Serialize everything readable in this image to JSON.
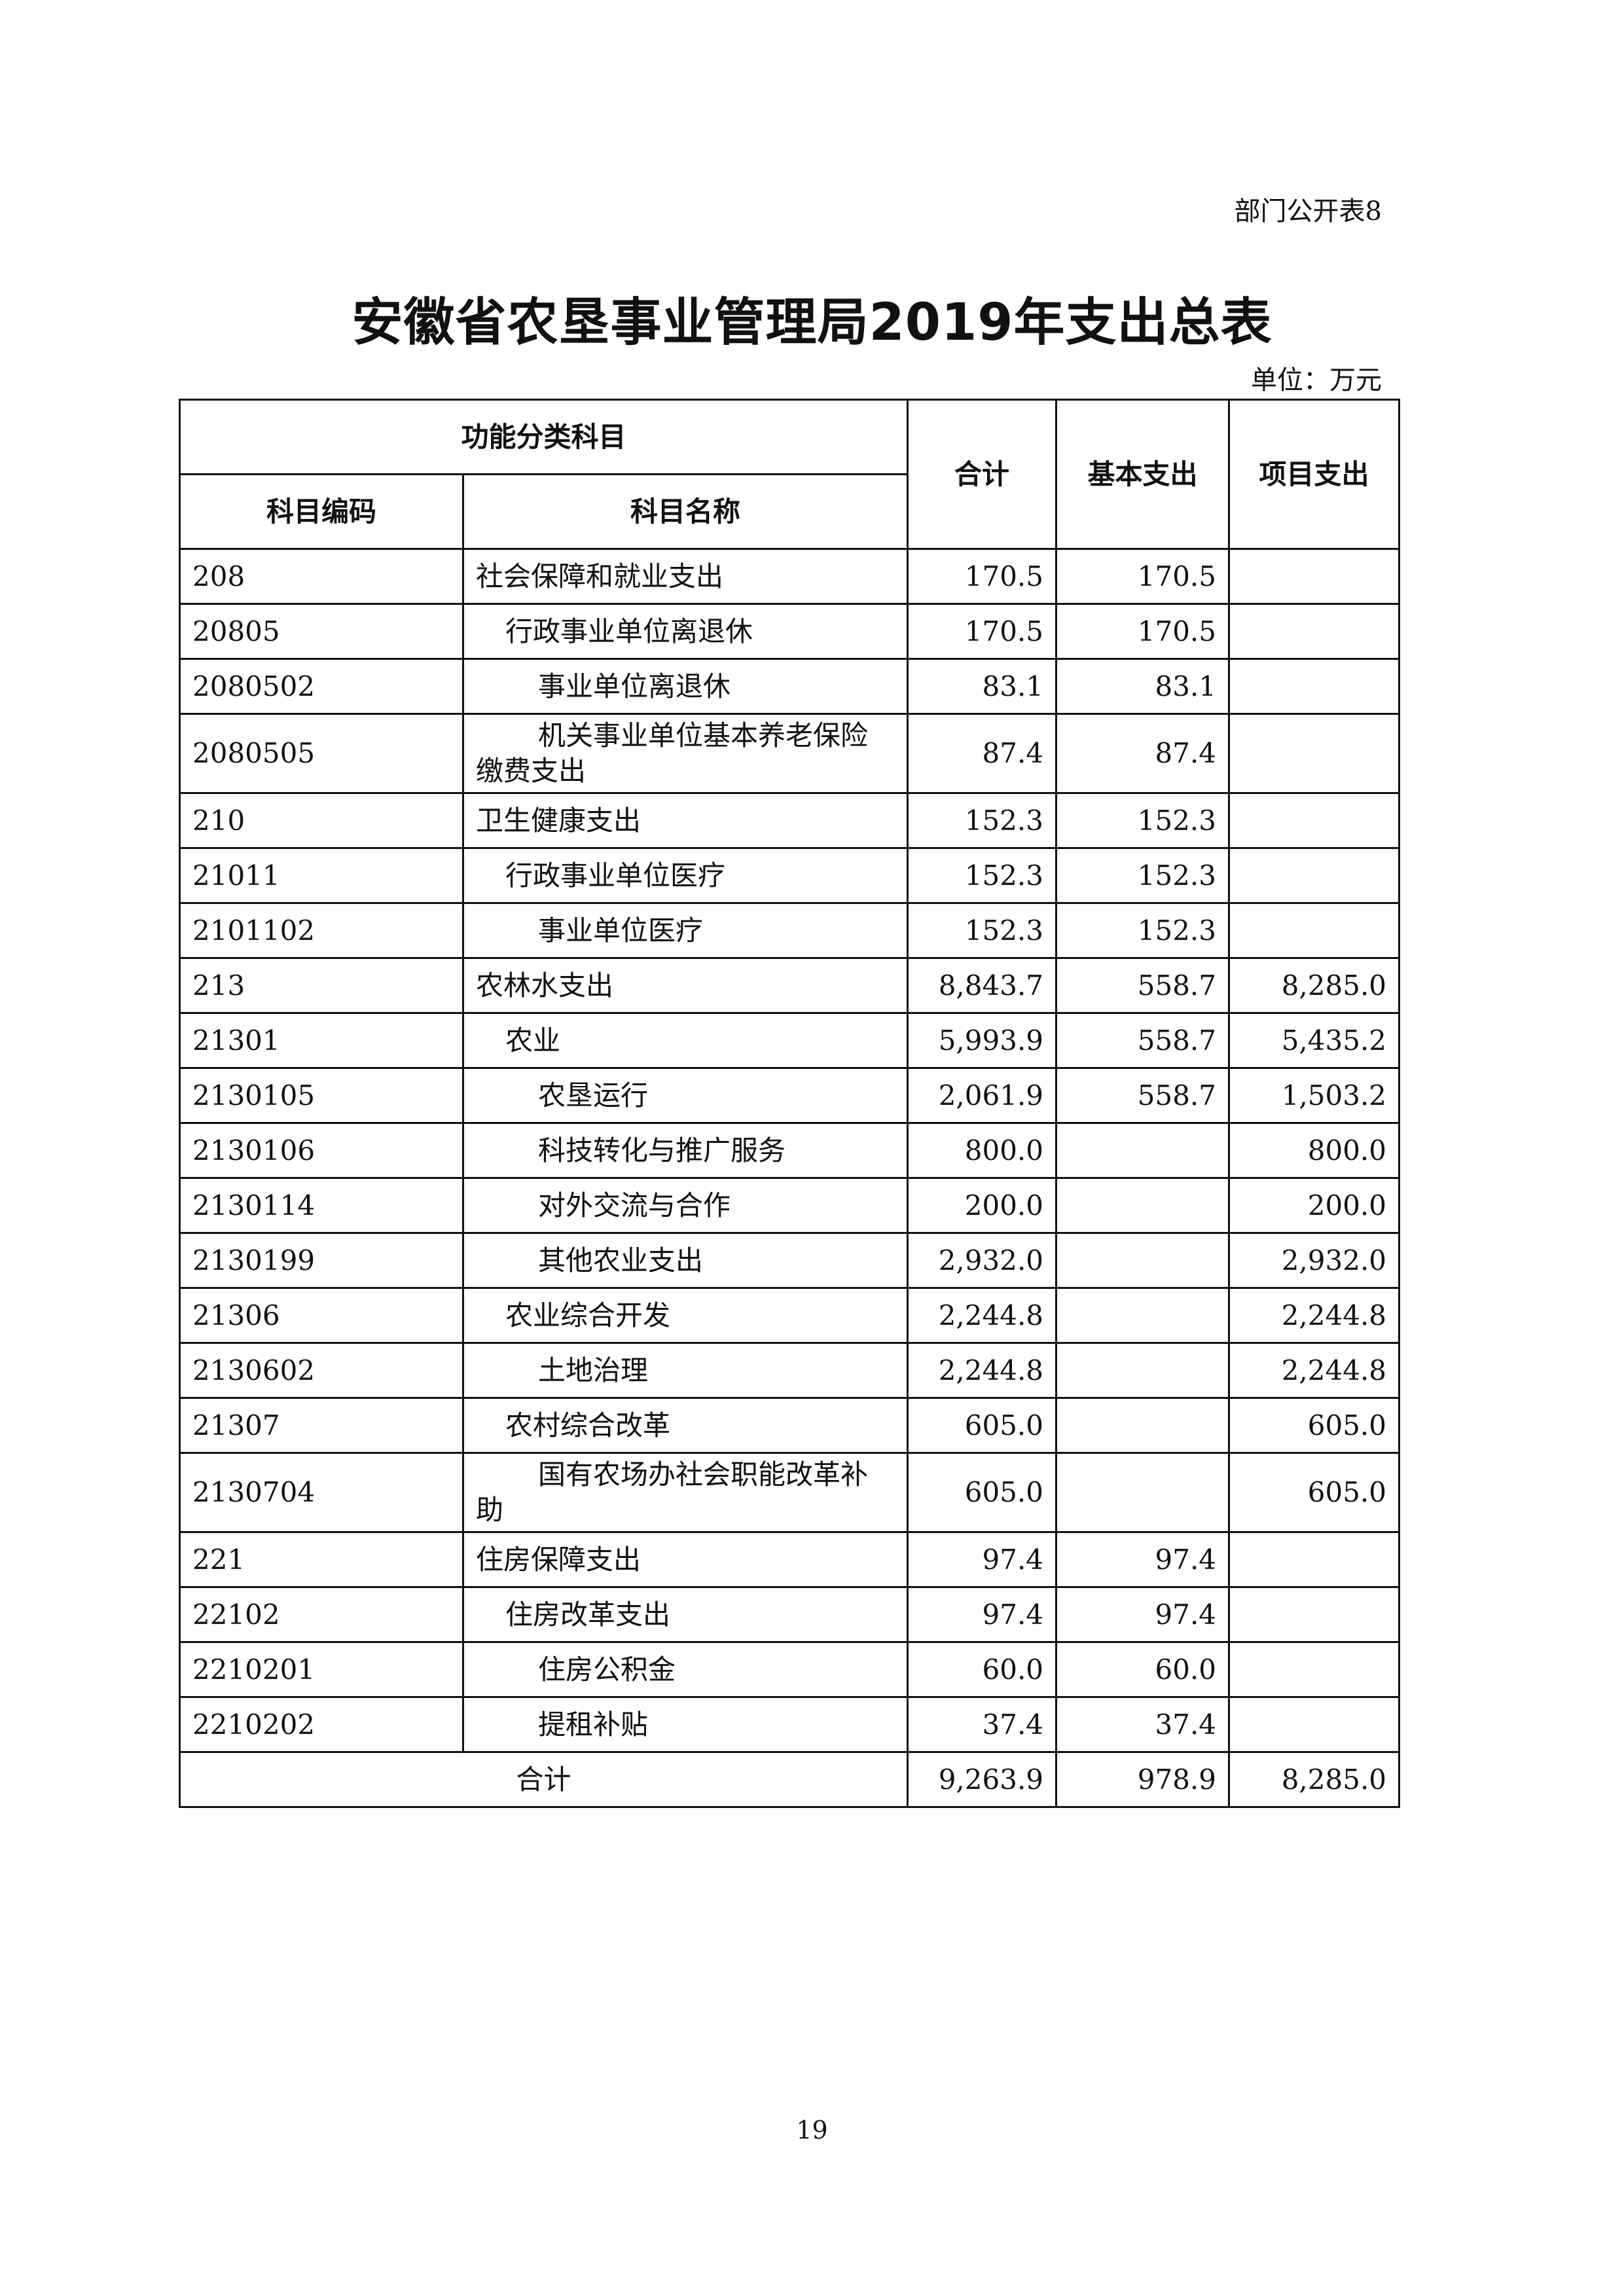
{
  "table_tag": "部门公开表8",
  "title": "安徽省农垦事业管理局2019年支出总表",
  "unit": "单位：万元",
  "headers": {
    "group": "功能分类科目",
    "code": "科目编码",
    "name": "科目名称",
    "total": "合计",
    "basic": "基本支出",
    "project": "项目支出"
  },
  "rows": [
    {
      "code": "208",
      "name": "社会保障和就业支出",
      "level": 1,
      "total": "170.5",
      "basic": "170.5",
      "project": ""
    },
    {
      "code": "20805",
      "name": "行政事业单位离退休",
      "level": 2,
      "total": "170.5",
      "basic": "170.5",
      "project": ""
    },
    {
      "code": "2080502",
      "name": "事业单位离退休",
      "level": 3,
      "total": "83.1",
      "basic": "83.1",
      "project": ""
    },
    {
      "code": "2080505",
      "name": "机关事业单位基本养老保险缴费支出",
      "level": 3,
      "total": "87.4",
      "basic": "87.4",
      "project": ""
    },
    {
      "code": "210",
      "name": "卫生健康支出",
      "level": 1,
      "total": "152.3",
      "basic": "152.3",
      "project": ""
    },
    {
      "code": "21011",
      "name": "行政事业单位医疗",
      "level": 2,
      "total": "152.3",
      "basic": "152.3",
      "project": ""
    },
    {
      "code": "2101102",
      "name": "事业单位医疗",
      "level": 3,
      "total": "152.3",
      "basic": "152.3",
      "project": ""
    },
    {
      "code": "213",
      "name": "农林水支出",
      "level": 1,
      "total": "8,843.7",
      "basic": "558.7",
      "project": "8,285.0"
    },
    {
      "code": "21301",
      "name": "农业",
      "level": 2,
      "total": "5,993.9",
      "basic": "558.7",
      "project": "5,435.2"
    },
    {
      "code": "2130105",
      "name": "农垦运行",
      "level": 3,
      "total": "2,061.9",
      "basic": "558.7",
      "project": "1,503.2"
    },
    {
      "code": "2130106",
      "name": "科技转化与推广服务",
      "level": 3,
      "total": "800.0",
      "basic": "",
      "project": "800.0"
    },
    {
      "code": "2130114",
      "name": "对外交流与合作",
      "level": 3,
      "total": "200.0",
      "basic": "",
      "project": "200.0"
    },
    {
      "code": "2130199",
      "name": "其他农业支出",
      "level": 3,
      "total": "2,932.0",
      "basic": "",
      "project": "2,932.0"
    },
    {
      "code": "21306",
      "name": "农业综合开发",
      "level": 2,
      "total": "2,244.8",
      "basic": "",
      "project": "2,244.8"
    },
    {
      "code": "2130602",
      "name": "土地治理",
      "level": 3,
      "total": "2,244.8",
      "basic": "",
      "project": "2,244.8"
    },
    {
      "code": "21307",
      "name": "农村综合改革",
      "level": 2,
      "total": "605.0",
      "basic": "",
      "project": "605.0"
    },
    {
      "code": "2130704",
      "name": "国有农场办社会职能改革补助",
      "level": 3,
      "total": "605.0",
      "basic": "",
      "project": "605.0"
    },
    {
      "code": "221",
      "name": "住房保障支出",
      "level": 1,
      "total": "97.4",
      "basic": "97.4",
      "project": ""
    },
    {
      "code": "22102",
      "name": "住房改革支出",
      "level": 2,
      "total": "97.4",
      "basic": "97.4",
      "project": ""
    },
    {
      "code": "2210201",
      "name": "住房公积金",
      "level": 3,
      "total": "60.0",
      "basic": "60.0",
      "project": ""
    },
    {
      "code": "2210202",
      "name": "提租补贴",
      "level": 3,
      "total": "37.4",
      "basic": "37.4",
      "project": ""
    }
  ],
  "grand_total": {
    "label": "合计",
    "total": "9,263.9",
    "basic": "978.9",
    "project": "8,285.0"
  },
  "page_number": "19"
}
